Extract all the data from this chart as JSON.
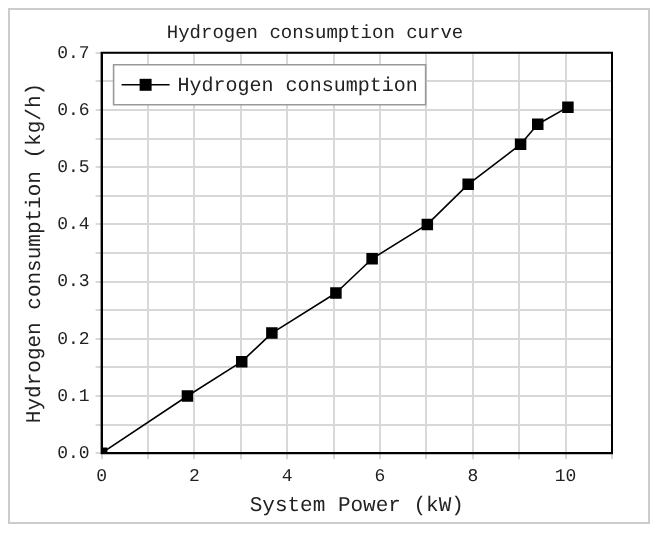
{
  "chart_data": {
    "type": "line",
    "title": "Hydrogen consumption curve",
    "xlabel": "System Power (kW)",
    "ylabel": "Hydrogen consumption (kg/h)",
    "x": [
      0,
      1.85,
      3.02,
      3.67,
      5.05,
      5.83,
      7.02,
      7.9,
      9.03,
      9.4,
      10.05
    ],
    "series": [
      {
        "name": "Hydrogen consumption",
        "color": "#000000",
        "values": [
          0,
          0.1,
          0.16,
          0.21,
          0.28,
          0.34,
          0.4,
          0.47,
          0.54,
          0.575,
          0.605
        ]
      }
    ],
    "xlim": [
      0,
      11
    ],
    "xticks": [
      0,
      {
        "value": 1,
        "label": null
      },
      2,
      {
        "value": 3,
        "label": null
      },
      4,
      {
        "value": 5,
        "label": null
      },
      6,
      {
        "value": 7,
        "label": null
      },
      8,
      {
        "value": 9,
        "label": null
      },
      10,
      {
        "value": 11,
        "label": null
      }
    ],
    "ylim": [
      0,
      0.7
    ],
    "yticks": [
      "0.0",
      {
        "value": 0.05,
        "label": null
      },
      0.1,
      {
        "value": 0.15,
        "label": null
      },
      0.2,
      {
        "value": 0.25,
        "label": null
      },
      0.3,
      {
        "value": 0.35,
        "label": null
      },
      0.4,
      {
        "value": 0.45,
        "label": null
      },
      0.5,
      {
        "value": 0.55,
        "label": null
      },
      0.6,
      {
        "value": 0.65,
        "label": null
      },
      0.7
    ],
    "grid": true,
    "legend": "top left",
    "marker": "square",
    "line_style": "solid"
  }
}
